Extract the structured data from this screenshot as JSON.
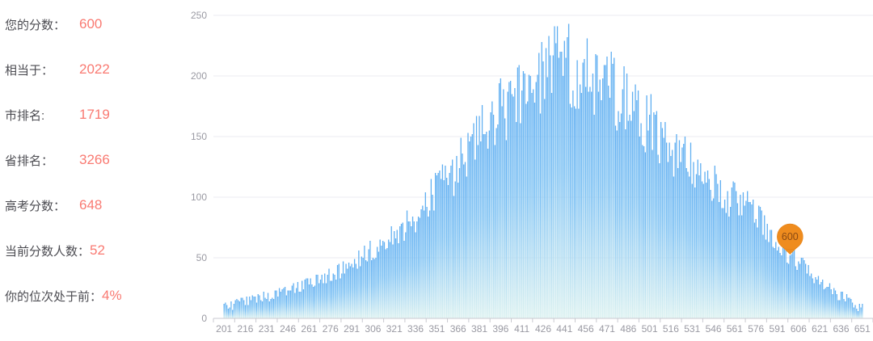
{
  "panel": {
    "label_color": "#4c4c52",
    "value_color": "#f97a72",
    "stats": [
      {
        "key": "your-score",
        "label": "您的分数：",
        "value": "600"
      },
      {
        "key": "equivalent-to",
        "label": "相当于：",
        "value": "2022"
      },
      {
        "key": "city-rank",
        "label": "市排名:",
        "value": "1719"
      },
      {
        "key": "province-rank",
        "label": "省排名：",
        "value": "3266"
      },
      {
        "key": "gaokao-score",
        "label": "高考分数：",
        "value": "648"
      },
      {
        "key": "current-score-count",
        "label": "当前分数人数：",
        "value": "52"
      },
      {
        "key": "percentile",
        "label": "你的位次处于前：",
        "value": "4%"
      }
    ]
  },
  "chart_data": {
    "type": "bar",
    "title": "",
    "xlabel": "",
    "ylabel": "",
    "grid": true,
    "legend": false,
    "x_start": 201,
    "x_end": 651,
    "bin_width": 1,
    "x_tick_step": 15,
    "x_tick_labels": [
      "201",
      "216",
      "231",
      "246",
      "261",
      "276",
      "291",
      "306",
      "321",
      "336",
      "351",
      "366",
      "381",
      "396",
      "411",
      "426",
      "441",
      "456",
      "471",
      "486",
      "501",
      "516",
      "531",
      "546",
      "561",
      "576",
      "591",
      "606",
      "621",
      "636",
      "651"
    ],
    "y_ticks": [
      0,
      50,
      100,
      150,
      200,
      250
    ],
    "ylim": [
      0,
      250
    ],
    "envelope": {
      "comment": "estimated mean bar height (people count) at each labeled score; individual bars are envelope + random jitter",
      "x": [
        201,
        216,
        231,
        246,
        261,
        276,
        291,
        306,
        321,
        336,
        351,
        366,
        381,
        396,
        411,
        426,
        441,
        456,
        471,
        486,
        501,
        516,
        531,
        546,
        561,
        576,
        591,
        606,
        621,
        636,
        651
      ],
      "y": [
        8,
        15,
        18,
        22,
        30,
        35,
        45,
        58,
        68,
        85,
        105,
        125,
        148,
        172,
        190,
        202,
        210,
        206,
        194,
        178,
        160,
        140,
        124,
        110,
        98,
        85,
        62,
        46,
        30,
        18,
        9
      ]
    },
    "noise": {
      "seed": 7,
      "relative_amplitude": 0.17,
      "min_amplitude": 5,
      "max_value": 243,
      "min_value": 1
    },
    "fixed_points": [
      {
        "x": 600,
        "y": 52
      }
    ],
    "marker": {
      "x": 600,
      "y": 52,
      "label": "600"
    },
    "colors": {
      "bar_top": "#5dadf1",
      "bar_mid": "#7cc1f3",
      "bar_bottom": "#daf1f0",
      "grid": "#ebebf2",
      "axis": "#c9c9d0",
      "tick_text": "#9a9aa3",
      "marker_fill": "#ef8c1e",
      "marker_stroke": "#e07d12",
      "marker_text": "#8a4a14"
    }
  }
}
